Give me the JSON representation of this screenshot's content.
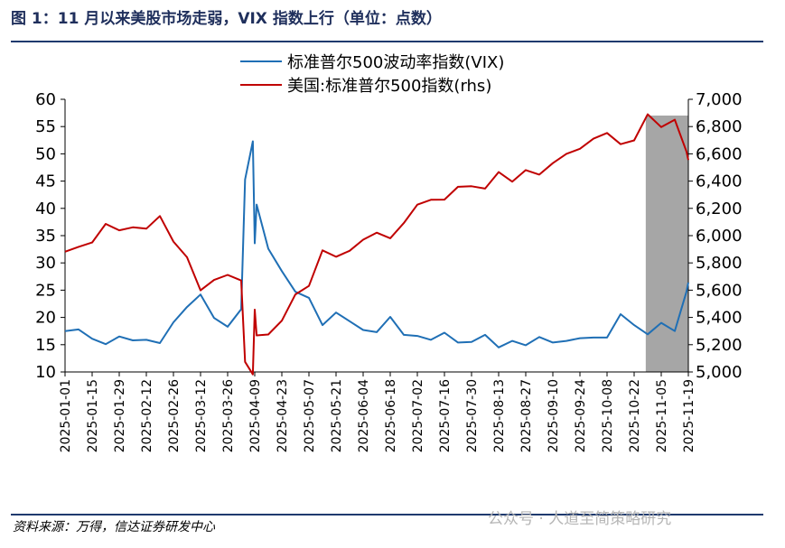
{
  "chart_data": {
    "type": "line",
    "title": "图 1：11 月以来美股市场走弱，VIX 指数上行（单位：点数）",
    "source": "资料来源：万得，信达证券研发中心",
    "watermark": "公众号 · 人道至简策略研究",
    "x": [
      "2025-01-01",
      "2025-01-08",
      "2025-01-15",
      "2025-01-22",
      "2025-01-29",
      "2025-02-05",
      "2025-02-12",
      "2025-02-19",
      "2025-02-26",
      "2025-03-05",
      "2025-03-12",
      "2025-03-19",
      "2025-03-26",
      "2025-04-02",
      "2025-04-04",
      "2025-04-08",
      "2025-04-09",
      "2025-04-10",
      "2025-04-16",
      "2025-04-23",
      "2025-04-30",
      "2025-05-07",
      "2025-05-14",
      "2025-05-21",
      "2025-05-28",
      "2025-06-04",
      "2025-06-11",
      "2025-06-18",
      "2025-06-25",
      "2025-07-02",
      "2025-07-09",
      "2025-07-16",
      "2025-07-23",
      "2025-07-30",
      "2025-08-06",
      "2025-08-13",
      "2025-08-20",
      "2025-08-27",
      "2025-09-03",
      "2025-09-10",
      "2025-09-17",
      "2025-09-24",
      "2025-10-01",
      "2025-10-08",
      "2025-10-15",
      "2025-10-22",
      "2025-10-29",
      "2025-11-05",
      "2025-11-12",
      "2025-11-18",
      "2025-11-19"
    ],
    "series": [
      {
        "name": "标准普尔500波动率指数(VIX)",
        "color": "#1f6fb5",
        "axis": "y",
        "values": [
          17.5,
          17.8,
          16.1,
          15.1,
          16.5,
          15.8,
          15.9,
          15.3,
          19.1,
          21.9,
          24.2,
          19.9,
          18.3,
          21.5,
          45.3,
          52.3,
          33.6,
          40.7,
          32.6,
          28.5,
          24.7,
          23.6,
          18.6,
          20.9,
          19.3,
          17.7,
          17.3,
          20.1,
          16.8,
          16.6,
          15.9,
          17.2,
          15.4,
          15.5,
          16.8,
          14.5,
          15.7,
          14.9,
          16.4,
          15.4,
          15.7,
          16.2,
          16.3,
          16.3,
          20.6,
          18.6,
          16.9,
          19.0,
          17.5,
          24.7,
          26.4
        ]
      },
      {
        "name": "美国:标准普尔500指数(rhs)",
        "color": "#c00000",
        "axis": "y2",
        "values": [
          5882,
          5918,
          5950,
          6086,
          6039,
          6061,
          6051,
          6144,
          5956,
          5842,
          5599,
          5675,
          5712,
          5671,
          5074,
          4982,
          5457,
          5268,
          5275,
          5376,
          5569,
          5631,
          5892,
          5845,
          5889,
          5970,
          6022,
          5981,
          6092,
          6227,
          6263,
          6264,
          6358,
          6362,
          6345,
          6466,
          6396,
          6481,
          6448,
          6532,
          6600,
          6637,
          6711,
          6753,
          6671,
          6699,
          6890,
          6796,
          6850,
          6617,
          6555
        ]
      }
    ],
    "shaded_range": [
      "2025-10-28",
      "2025-11-19"
    ],
    "shade_color": "#a6a6a6",
    "xlim": [
      "2025-01-01",
      "2025-11-19"
    ],
    "xticks": [
      "2025-01-01",
      "2025-01-15",
      "2025-01-29",
      "2025-02-12",
      "2025-02-26",
      "2025-03-12",
      "2025-03-26",
      "2025-04-09",
      "2025-04-23",
      "2025-05-07",
      "2025-05-21",
      "2025-06-04",
      "2025-06-18",
      "2025-07-02",
      "2025-07-16",
      "2025-07-30",
      "2025-08-13",
      "2025-08-27",
      "2025-09-10",
      "2025-09-24",
      "2025-10-08",
      "2025-10-22",
      "2025-11-05",
      "2025-11-19"
    ],
    "ylim": [
      10,
      60
    ],
    "yticks": [
      10,
      15,
      20,
      25,
      30,
      35,
      40,
      45,
      50,
      55,
      60
    ],
    "y2lim": [
      5000,
      7000
    ],
    "y2ticks": [
      {
        "value": 5000,
        "label": "5,000"
      },
      {
        "value": 5200,
        "label": "5,200"
      },
      {
        "value": 5400,
        "label": "5,400"
      },
      {
        "value": 5600,
        "label": "5,600"
      },
      {
        "value": 5800,
        "label": "5,800"
      },
      {
        "value": 6000,
        "label": "6,000"
      },
      {
        "value": 6200,
        "label": "6,200"
      },
      {
        "value": 6400,
        "label": "6,400"
      },
      {
        "value": 6600,
        "label": "6,600"
      },
      {
        "value": 6800,
        "label": "6,800"
      },
      {
        "value": 7000,
        "label": "7,000"
      }
    ],
    "legend": "top"
  }
}
